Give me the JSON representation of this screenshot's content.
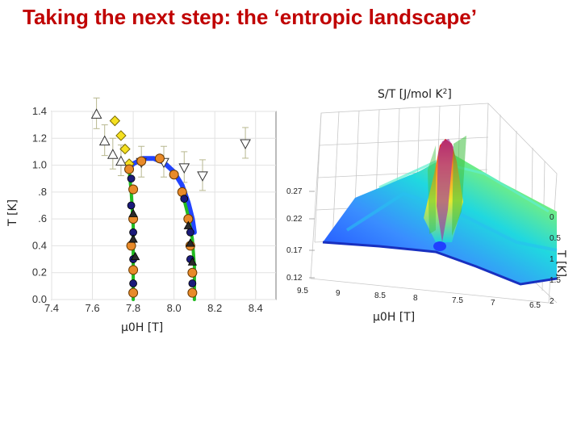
{
  "slide": {
    "title": "Taking the next step: the ‘entropic landscape’"
  },
  "colors": {
    "title": "#c00000",
    "phase_fit": "#2244ff",
    "boundary_fit": "#22bb22",
    "error_bars": "#b8b890"
  },
  "chart_data": [
    {
      "type": "scatter",
      "ylabel": "T [K]",
      "xlabel": "μ0H [T]",
      "xlim": [
        7.4,
        8.5
      ],
      "ylim": [
        0.0,
        1.4
      ],
      "x_ticks": [
        "7.4",
        "7.6",
        "7.8",
        "8.0",
        "8.2",
        "8.4"
      ],
      "y_ticks": [
        "0.0",
        "0.2",
        "0.4",
        ".6",
        ".8",
        "1.0",
        "1.2",
        "1.4"
      ],
      "grid": true,
      "series": [
        {
          "marker": "diamond-yellow",
          "points": [
            [
              7.71,
              1.33
            ],
            [
              7.74,
              1.22
            ],
            [
              7.76,
              1.12
            ],
            [
              7.78,
              1.01
            ]
          ]
        },
        {
          "marker": "triangle-up-open",
          "points": [
            [
              7.62,
              1.38
            ],
            [
              7.66,
              1.18
            ],
            [
              7.7,
              1.08
            ],
            [
              7.74,
              1.03
            ]
          ]
        },
        {
          "marker": "triangle-down-open",
          "points": [
            [
              7.84,
              1.02
            ],
            [
              7.95,
              1.02
            ],
            [
              8.05,
              0.98
            ],
            [
              8.14,
              0.92
            ],
            [
              8.35,
              1.16
            ]
          ]
        },
        {
          "marker": "circle-orange",
          "points": [
            [
              7.78,
              0.97
            ],
            [
              7.8,
              0.82
            ],
            [
              7.8,
              0.6
            ],
            [
              7.79,
              0.4
            ],
            [
              7.8,
              0.22
            ],
            [
              7.8,
              0.05
            ],
            [
              7.84,
              1.03
            ],
            [
              7.93,
              1.05
            ],
            [
              8.0,
              0.93
            ],
            [
              8.04,
              0.8
            ],
            [
              8.07,
              0.6
            ],
            [
              8.08,
              0.4
            ],
            [
              8.09,
              0.2
            ],
            [
              8.09,
              0.05
            ]
          ]
        },
        {
          "marker": "circle-navy",
          "points": [
            [
              7.79,
              0.9
            ],
            [
              7.79,
              0.7
            ],
            [
              7.8,
              0.5
            ],
            [
              7.8,
              0.3
            ],
            [
              7.8,
              0.12
            ],
            [
              8.05,
              0.75
            ],
            [
              8.08,
              0.5
            ],
            [
              8.08,
              0.3
            ],
            [
              8.09,
              0.12
            ]
          ]
        },
        {
          "marker": "triangle-dark",
          "points": [
            [
              7.8,
              0.64
            ],
            [
              7.8,
              0.45
            ],
            [
              7.81,
              0.32
            ],
            [
              8.07,
              0.55
            ],
            [
              8.08,
              0.42
            ],
            [
              8.09,
              0.28
            ]
          ]
        }
      ],
      "fits": [
        {
          "color": "blue",
          "points": [
            [
              7.77,
              0.96
            ],
            [
              7.8,
              1.01
            ],
            [
              7.85,
              1.05
            ],
            [
              7.9,
              1.05
            ],
            [
              7.95,
              1.02
            ],
            [
              8.0,
              0.95
            ],
            [
              8.04,
              0.85
            ],
            [
              8.07,
              0.72
            ],
            [
              8.09,
              0.6
            ],
            [
              8.1,
              0.5
            ]
          ]
        },
        {
          "color": "green",
          "points": [
            [
              7.78,
              0.97
            ],
            [
              7.79,
              0.8
            ],
            [
              7.8,
              0.55
            ],
            [
              7.8,
              0.3
            ],
            [
              7.8,
              0.0
            ]
          ]
        },
        {
          "color": "green",
          "points": [
            [
              8.04,
              0.8
            ],
            [
              8.07,
              0.62
            ],
            [
              8.09,
              0.45
            ],
            [
              8.1,
              0.25
            ],
            [
              8.1,
              0.0
            ]
          ]
        }
      ]
    },
    {
      "type": "surface",
      "zlabel": "S/T [J/mol K",
      "zlabel_sup": "2",
      "zlabel_tail": "]",
      "xlabel": "μ0H [T]",
      "ylabel": "T [K]",
      "z_ticks": [
        "0.27",
        "0.22",
        "0.17",
        "0.12"
      ],
      "x_ticks": [
        "9.5",
        "9",
        "8.5",
        "8",
        "7.5",
        "7",
        "6.5"
      ],
      "y_ticks": [
        "0",
        "0.5",
        "1",
        "1.5",
        "2"
      ]
    }
  ]
}
